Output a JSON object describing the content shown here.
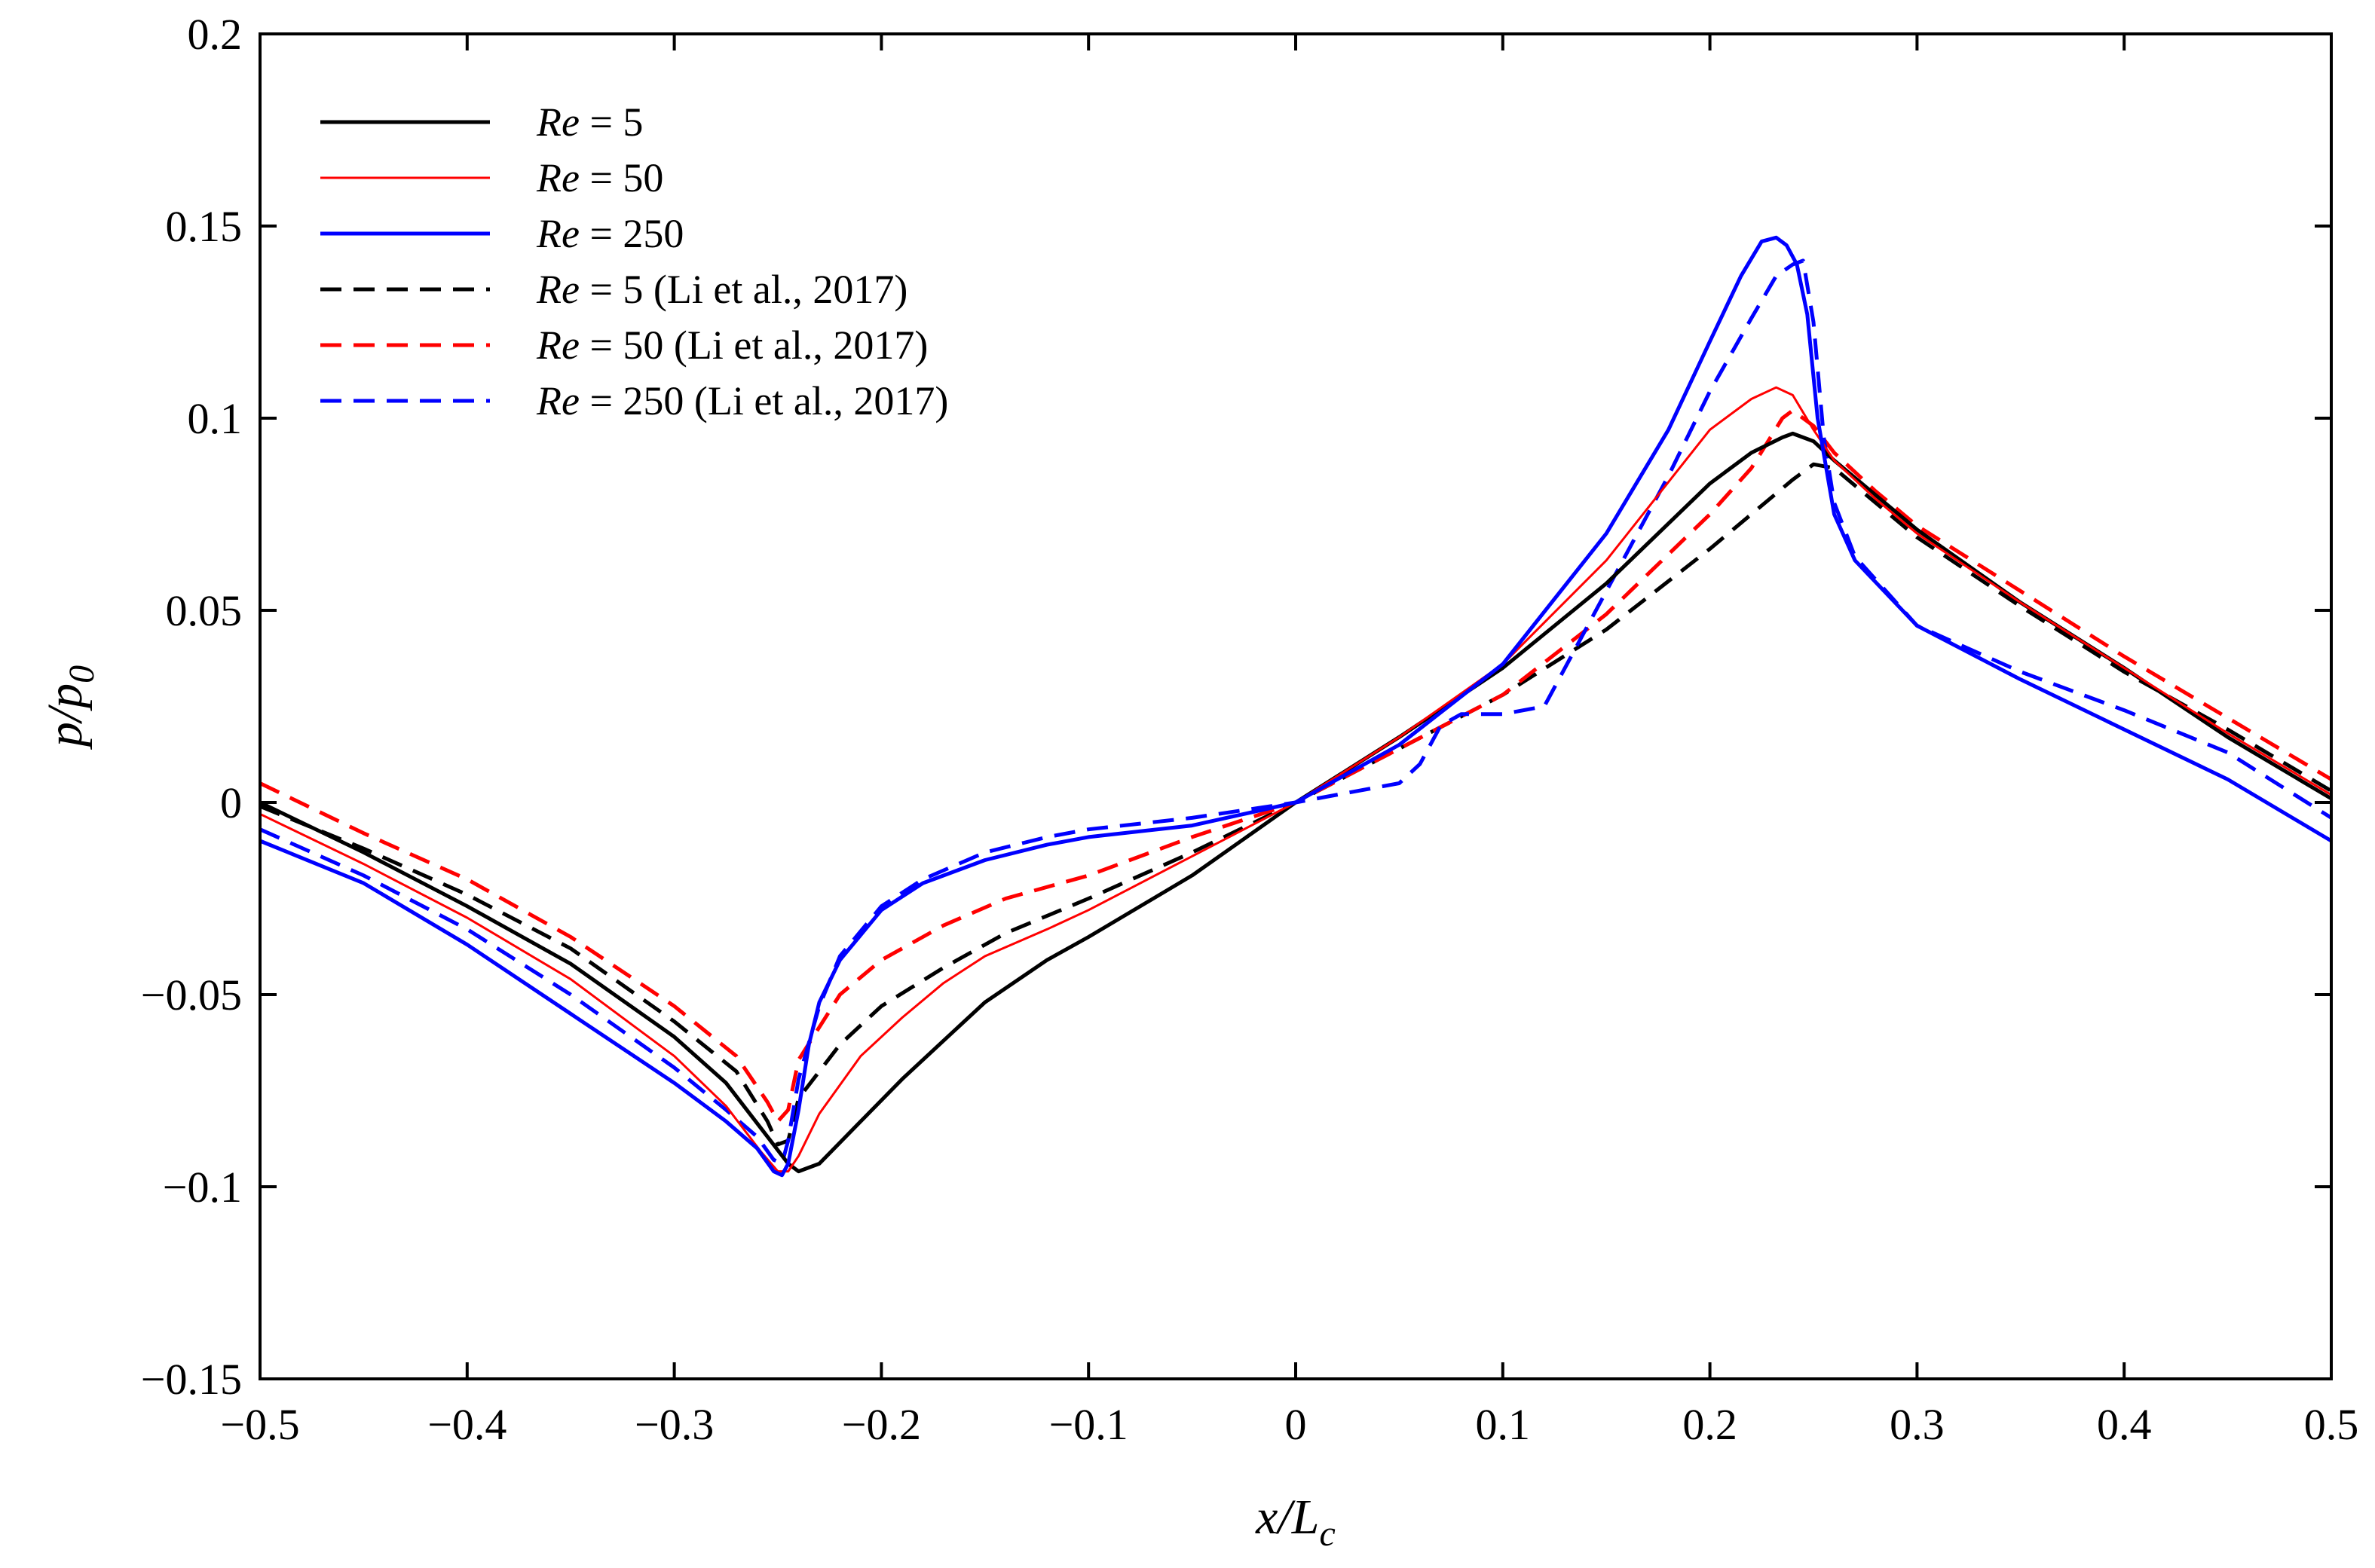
{
  "chart_data": {
    "type": "line",
    "title": "",
    "xlabel": {
      "main": "x/L",
      "sub": "c"
    },
    "ylabel": {
      "main": "p/p",
      "sub": "0"
    },
    "xlim": [
      -0.5,
      0.5
    ],
    "ylim": [
      -0.15,
      0.2
    ],
    "xticks": [
      -0.5,
      -0.4,
      -0.3,
      -0.2,
      -0.1,
      0,
      0.1,
      0.2,
      0.3,
      0.4,
      0.5
    ],
    "xtick_labels": [
      "−0.5",
      "−0.4",
      "−0.3",
      "−0.2",
      "−0.1",
      "0",
      "0.1",
      "0.2",
      "0.3",
      "0.4",
      "0.5"
    ],
    "yticks": [
      -0.15,
      -0.1,
      -0.05,
      0,
      0.05,
      0.1,
      0.15,
      0.2
    ],
    "ytick_labels": [
      "−0.15",
      "−0.1",
      "−0.05",
      "0",
      "0.05",
      "0.1",
      "0.15",
      "0.2"
    ],
    "grid": false,
    "legend_position": "top-left",
    "series": [
      {
        "name": "Re = 5",
        "re": "Re",
        "rest": " = 5",
        "color": "#000000",
        "dashed": false,
        "width": 5,
        "x": [
          -0.5,
          -0.45,
          -0.4,
          -0.35,
          -0.3,
          -0.275,
          -0.255,
          -0.245,
          -0.24,
          -0.23,
          -0.21,
          -0.19,
          -0.17,
          -0.15,
          -0.12,
          -0.1,
          -0.05,
          0,
          0.05,
          0.1,
          0.15,
          0.2,
          0.22,
          0.235,
          0.24,
          0.25,
          0.26,
          0.28,
          0.3,
          0.35,
          0.4,
          0.45,
          0.5
        ],
        "y": [
          0,
          -0.013,
          -0.027,
          -0.042,
          -0.061,
          -0.073,
          -0.087,
          -0.094,
          -0.096,
          -0.094,
          -0.083,
          -0.072,
          -0.062,
          -0.052,
          -0.041,
          -0.035,
          -0.019,
          0,
          0.017,
          0.035,
          0.057,
          0.083,
          0.091,
          0.095,
          0.096,
          0.094,
          0.089,
          0.08,
          0.071,
          0.052,
          0.035,
          0.017,
          0.001
        ]
      },
      {
        "name": "Re = 50",
        "re": "Re",
        "rest": " = 50",
        "color": "#ff0000",
        "dashed": false,
        "width": 3,
        "x": [
          -0.5,
          -0.45,
          -0.4,
          -0.35,
          -0.3,
          -0.275,
          -0.258,
          -0.25,
          -0.245,
          -0.24,
          -0.23,
          -0.21,
          -0.19,
          -0.17,
          -0.15,
          -0.12,
          -0.1,
          -0.05,
          0,
          0.05,
          0.1,
          0.15,
          0.2,
          0.22,
          0.232,
          0.24,
          0.25,
          0.26,
          0.28,
          0.3,
          0.35,
          0.4,
          0.45,
          0.5
        ],
        "y": [
          -0.003,
          -0.016,
          -0.03,
          -0.046,
          -0.066,
          -0.079,
          -0.091,
          -0.096,
          -0.096,
          -0.092,
          -0.081,
          -0.066,
          -0.056,
          -0.047,
          -0.04,
          -0.033,
          -0.028,
          -0.014,
          0,
          0.017,
          0.036,
          0.063,
          0.097,
          0.105,
          0.108,
          0.106,
          0.097,
          0.089,
          0.079,
          0.07,
          0.052,
          0.035,
          0.018,
          0.002
        ]
      },
      {
        "name": "Re = 250",
        "re": "Re",
        "rest": " = 250",
        "color": "#0000ff",
        "dashed": false,
        "width": 5,
        "x": [
          -0.5,
          -0.45,
          -0.4,
          -0.35,
          -0.3,
          -0.275,
          -0.26,
          -0.252,
          -0.248,
          -0.245,
          -0.24,
          -0.235,
          -0.23,
          -0.22,
          -0.2,
          -0.18,
          -0.15,
          -0.12,
          -0.1,
          -0.05,
          0,
          0.05,
          0.1,
          0.15,
          0.18,
          0.2,
          0.215,
          0.225,
          0.232,
          0.237,
          0.242,
          0.247,
          0.252,
          0.26,
          0.27,
          0.3,
          0.35,
          0.4,
          0.45,
          0.5
        ],
        "y": [
          -0.01,
          -0.021,
          -0.037,
          -0.055,
          -0.073,
          -0.083,
          -0.09,
          -0.096,
          -0.097,
          -0.094,
          -0.08,
          -0.063,
          -0.052,
          -0.041,
          -0.028,
          -0.021,
          -0.015,
          -0.011,
          -0.009,
          -0.006,
          0,
          0.015,
          0.036,
          0.07,
          0.097,
          0.12,
          0.137,
          0.146,
          0.147,
          0.145,
          0.14,
          0.127,
          0.1,
          0.075,
          0.063,
          0.046,
          0.032,
          0.019,
          0.006,
          -0.01
        ]
      },
      {
        "name": "Re = 5 (Li et al., 2017)",
        "re": "Re",
        "rest": " = 5 (Li et al., 2017)",
        "color": "#000000",
        "dashed": true,
        "width": 5,
        "x": [
          -0.5,
          -0.45,
          -0.4,
          -0.35,
          -0.3,
          -0.27,
          -0.255,
          -0.25,
          -0.245,
          -0.24,
          -0.22,
          -0.2,
          -0.17,
          -0.14,
          -0.1,
          -0.05,
          0,
          0.05,
          0.1,
          0.15,
          0.2,
          0.22,
          0.24,
          0.25,
          0.26,
          0.28,
          0.3,
          0.35,
          0.4,
          0.45,
          0.5
        ],
        "y": [
          -0.001,
          -0.012,
          -0.024,
          -0.038,
          -0.057,
          -0.07,
          -0.083,
          -0.089,
          -0.088,
          -0.077,
          -0.063,
          -0.053,
          -0.043,
          -0.034,
          -0.025,
          -0.013,
          0,
          0.014,
          0.028,
          0.045,
          0.066,
          0.075,
          0.084,
          0.088,
          0.087,
          0.078,
          0.069,
          0.051,
          0.034,
          0.019,
          0.003
        ]
      },
      {
        "name": "Re = 50 (Li et al., 2017)",
        "re": "Re",
        "rest": " = 50 (Li et al., 2017)",
        "color": "#ff0000",
        "dashed": true,
        "width": 5,
        "x": [
          -0.5,
          -0.45,
          -0.4,
          -0.35,
          -0.3,
          -0.27,
          -0.255,
          -0.25,
          -0.245,
          -0.24,
          -0.22,
          -0.2,
          -0.17,
          -0.14,
          -0.1,
          -0.05,
          0,
          0.05,
          0.1,
          0.15,
          0.2,
          0.22,
          0.235,
          0.24,
          0.25,
          0.26,
          0.28,
          0.3,
          0.35,
          0.4,
          0.45,
          0.5
        ],
        "y": [
          0.005,
          -0.008,
          -0.02,
          -0.035,
          -0.053,
          -0.066,
          -0.078,
          -0.083,
          -0.08,
          -0.067,
          -0.05,
          -0.041,
          -0.032,
          -0.025,
          -0.019,
          -0.009,
          0,
          0.014,
          0.028,
          0.049,
          0.075,
          0.087,
          0.1,
          0.102,
          0.098,
          0.091,
          0.081,
          0.072,
          0.055,
          0.038,
          0.022,
          0.006
        ]
      },
      {
        "name": "Re = 250 (Li et al., 2017)",
        "re": "Re",
        "rest": " = 250 (Li et al., 2017)",
        "color": "#0000ff",
        "dashed": true,
        "width": 5,
        "x": [
          -0.5,
          -0.45,
          -0.4,
          -0.35,
          -0.3,
          -0.275,
          -0.26,
          -0.252,
          -0.248,
          -0.245,
          -0.24,
          -0.23,
          -0.22,
          -0.2,
          -0.18,
          -0.15,
          -0.12,
          -0.1,
          -0.05,
          0,
          0.03,
          0.05,
          0.06,
          0.07,
          0.08,
          0.1,
          0.12,
          0.15,
          0.18,
          0.2,
          0.22,
          0.232,
          0.24,
          0.245,
          0.25,
          0.255,
          0.26,
          0.27,
          0.3,
          0.35,
          0.4,
          0.45,
          0.5
        ],
        "y": [
          -0.007,
          -0.019,
          -0.033,
          -0.05,
          -0.069,
          -0.08,
          -0.087,
          -0.093,
          -0.094,
          -0.088,
          -0.072,
          -0.053,
          -0.04,
          -0.027,
          -0.02,
          -0.013,
          -0.009,
          -0.007,
          -0.004,
          0,
          0.003,
          0.005,
          0.01,
          0.02,
          0.023,
          0.023,
          0.025,
          0.055,
          0.085,
          0.107,
          0.126,
          0.137,
          0.14,
          0.141,
          0.125,
          0.095,
          0.078,
          0.064,
          0.046,
          0.034,
          0.024,
          0.013,
          -0.004
        ]
      }
    ]
  }
}
